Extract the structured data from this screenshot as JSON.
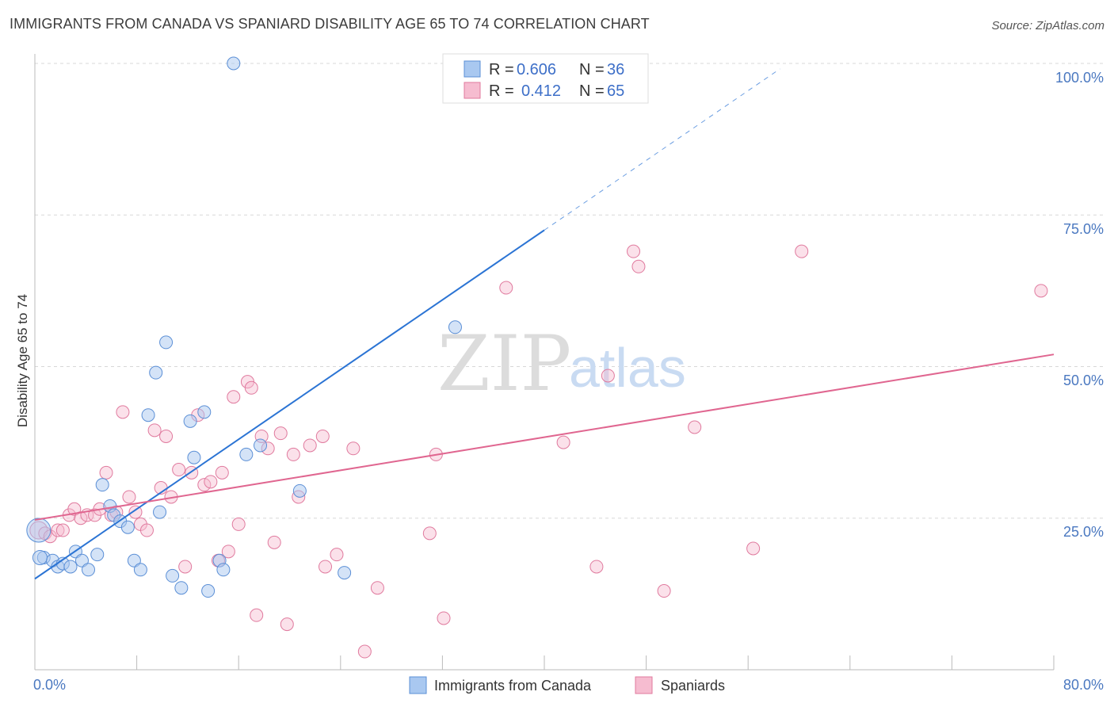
{
  "header": {
    "title": "IMMIGRANTS FROM CANADA VS SPANIARD DISABILITY AGE 65 TO 74 CORRELATION CHART",
    "source": "Source: ZipAtlas.com"
  },
  "watermark": {
    "zip": "ZIP",
    "atlas": "atlas"
  },
  "colors": {
    "canada_fill": "#a9c8f0",
    "canada_stroke": "#5b8fd6",
    "canada_line": "#2b74d4",
    "spain_fill": "#f6bcd0",
    "spain_stroke": "#e07a9e",
    "spain_line": "#e06690",
    "tick_label": "#4a78c0",
    "grid": "#d8d8d8"
  },
  "legend": {
    "rows": [
      {
        "r_label": "R =",
        "r_value": "0.606",
        "n_label": "N =",
        "n_value": "36"
      },
      {
        "r_label": "R =",
        "r_value": "0.412",
        "n_label": "N =",
        "n_value": "65"
      }
    ]
  },
  "bottom_legend": [
    "Immigrants from Canada",
    "Spaniards"
  ],
  "chart_data": {
    "type": "scatter",
    "title": "IMMIGRANTS FROM CANADA VS SPANIARD DISABILITY AGE 65 TO 74 CORRELATION CHART",
    "xlabel": "",
    "ylabel": "Disability Age 65 to 74",
    "xlim": [
      0,
      80
    ],
    "ylim": [
      0,
      100
    ],
    "x_tick_labels": [
      "0.0%",
      "80.0%"
    ],
    "y_ticks": [
      25,
      50,
      75,
      100
    ],
    "y_tick_labels": [
      "25.0%",
      "50.0%",
      "75.0%",
      "100.0%"
    ],
    "series": [
      {
        "name": "Immigrants from Canada",
        "R": 0.606,
        "N": 36,
        "trend": {
          "x0": 0,
          "y0": 15,
          "x1": 40,
          "y1": 72.5,
          "dash_to_x": 58.5
        },
        "points": [
          [
            0.3,
            23.0
          ],
          [
            0.7,
            18.5
          ],
          [
            1.4,
            18.0
          ],
          [
            1.8,
            17.0
          ],
          [
            2.2,
            17.5
          ],
          [
            2.8,
            17.0
          ],
          [
            3.2,
            19.5
          ],
          [
            3.7,
            18.0
          ],
          [
            4.2,
            16.5
          ],
          [
            4.9,
            19.0
          ],
          [
            5.3,
            30.5
          ],
          [
            5.9,
            27.0
          ],
          [
            6.2,
            25.5
          ],
          [
            6.7,
            24.5
          ],
          [
            7.3,
            23.5
          ],
          [
            7.8,
            18.0
          ],
          [
            8.3,
            16.5
          ],
          [
            8.9,
            42.0
          ],
          [
            9.5,
            49.0
          ],
          [
            9.8,
            26.0
          ],
          [
            10.3,
            54.0
          ],
          [
            10.8,
            15.5
          ],
          [
            11.5,
            13.5
          ],
          [
            12.2,
            41.0
          ],
          [
            12.5,
            35.0
          ],
          [
            13.3,
            42.5
          ],
          [
            13.6,
            13.0
          ],
          [
            14.5,
            18.0
          ],
          [
            14.8,
            16.5
          ],
          [
            15.6,
            100.0
          ],
          [
            16.6,
            35.5
          ],
          [
            17.7,
            37.0
          ],
          [
            20.8,
            29.5
          ],
          [
            24.3,
            16.0
          ],
          [
            33.0,
            56.5
          ],
          [
            0.4,
            18.5
          ]
        ]
      },
      {
        "name": "Spaniards",
        "R": 0.412,
        "N": 65,
        "trend": {
          "x0": 0,
          "y0": 24.7,
          "x1": 80,
          "y1": 52.0
        },
        "points": [
          [
            0.3,
            23.0
          ],
          [
            0.8,
            22.5
          ],
          [
            1.2,
            22.0
          ],
          [
            1.8,
            23.0
          ],
          [
            2.2,
            23.0
          ],
          [
            2.7,
            25.5
          ],
          [
            3.1,
            26.5
          ],
          [
            3.6,
            25.0
          ],
          [
            4.1,
            25.5
          ],
          [
            4.7,
            25.5
          ],
          [
            5.1,
            26.5
          ],
          [
            5.6,
            32.5
          ],
          [
            6.0,
            25.5
          ],
          [
            6.4,
            26.0
          ],
          [
            6.9,
            42.5
          ],
          [
            7.4,
            28.5
          ],
          [
            7.9,
            26.0
          ],
          [
            8.3,
            24.0
          ],
          [
            8.8,
            23.0
          ],
          [
            9.4,
            39.5
          ],
          [
            9.9,
            30.0
          ],
          [
            10.3,
            38.5
          ],
          [
            10.7,
            28.5
          ],
          [
            11.3,
            33.0
          ],
          [
            11.8,
            17.0
          ],
          [
            12.3,
            32.5
          ],
          [
            12.8,
            42.0
          ],
          [
            13.3,
            30.5
          ],
          [
            13.8,
            31.0
          ],
          [
            14.4,
            18.0
          ],
          [
            14.7,
            32.5
          ],
          [
            15.2,
            19.5
          ],
          [
            15.6,
            45.0
          ],
          [
            16.0,
            24.0
          ],
          [
            16.7,
            47.5
          ],
          [
            17.0,
            46.5
          ],
          [
            17.4,
            9.0
          ],
          [
            17.8,
            38.5
          ],
          [
            18.3,
            36.5
          ],
          [
            18.8,
            21.0
          ],
          [
            19.3,
            39.0
          ],
          [
            19.8,
            7.5
          ],
          [
            20.3,
            35.5
          ],
          [
            20.7,
            28.5
          ],
          [
            21.6,
            37.0
          ],
          [
            22.6,
            38.5
          ],
          [
            22.8,
            17.0
          ],
          [
            23.7,
            19.0
          ],
          [
            25.0,
            36.5
          ],
          [
            25.9,
            3.0
          ],
          [
            26.9,
            13.5
          ],
          [
            31.0,
            22.5
          ],
          [
            31.5,
            35.5
          ],
          [
            32.1,
            8.5
          ],
          [
            37.0,
            63.0
          ],
          [
            41.5,
            37.5
          ],
          [
            44.1,
            17.0
          ],
          [
            45.0,
            48.5
          ],
          [
            47.0,
            69.0
          ],
          [
            47.4,
            66.5
          ],
          [
            49.4,
            13.0
          ],
          [
            51.8,
            40.0
          ],
          [
            56.4,
            20.0
          ],
          [
            60.2,
            69.0
          ],
          [
            79.0,
            62.5
          ]
        ]
      }
    ],
    "legend_position": "top-center"
  }
}
